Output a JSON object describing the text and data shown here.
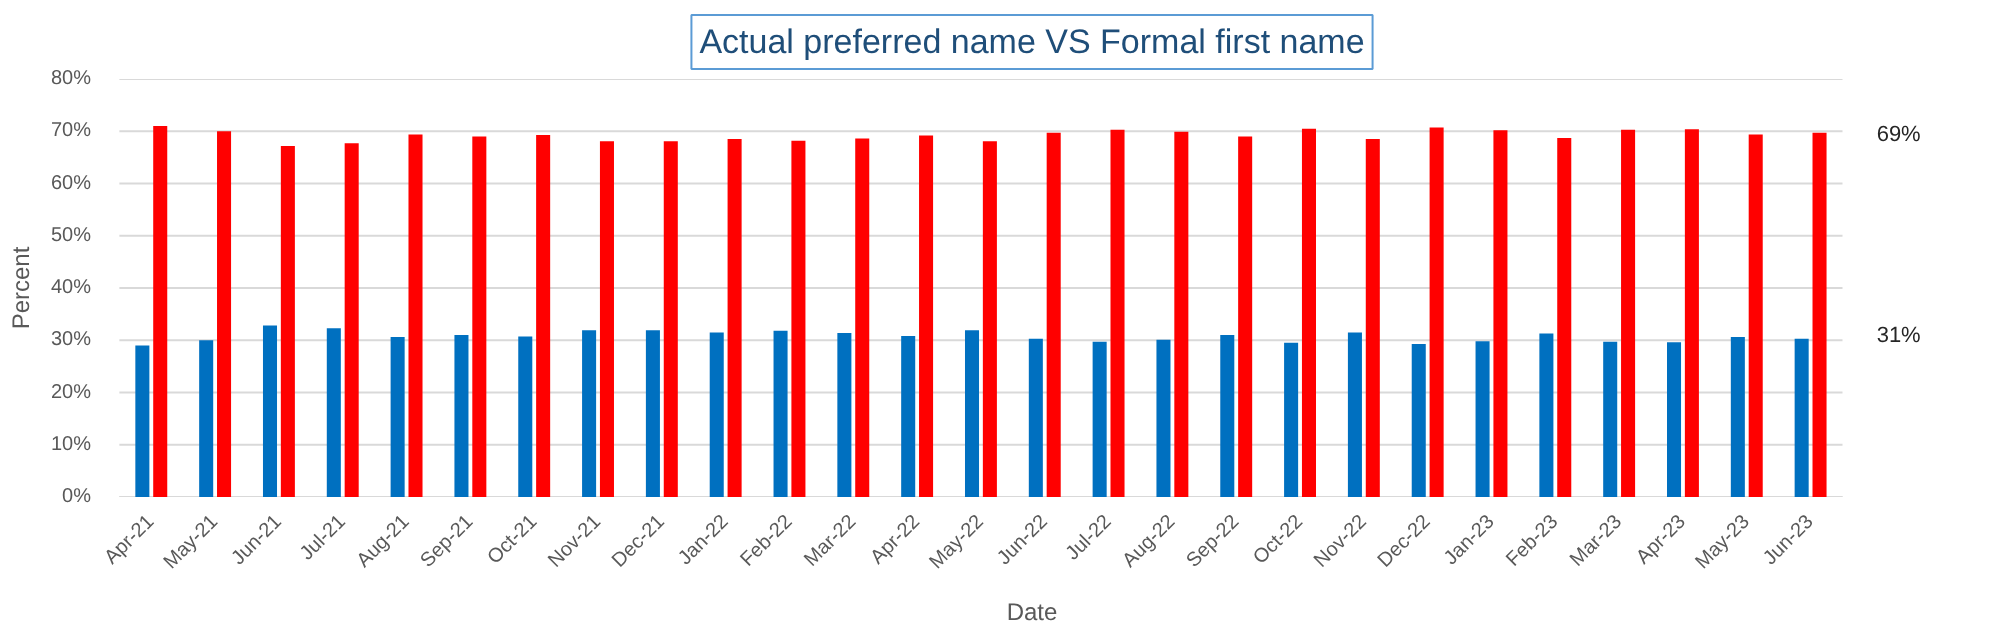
{
  "chart_data": {
    "type": "bar",
    "title": "Actual preferred name VS Formal first name",
    "xlabel": "Date",
    "ylabel": "Percent",
    "categories": [
      "Apr-21",
      "May-21",
      "Jun-21",
      "Jul-21",
      "Aug-21",
      "Sep-21",
      "Oct-21",
      "Nov-21",
      "Dec-21",
      "Jan-22",
      "Feb-22",
      "Mar-22",
      "Apr-22",
      "May-22",
      "Jun-22",
      "Jul-22",
      "Aug-22",
      "Sep-22",
      "Oct-22",
      "Nov-22",
      "Dec-22",
      "Jan-23",
      "Feb-23",
      "Mar-23",
      "Apr-23",
      "May-23",
      "Jun-23"
    ],
    "series": [
      {
        "color": "#0070c0",
        "values": [
          29,
          30,
          32.8,
          32.3,
          30.6,
          31,
          30.7,
          31.9,
          31.9,
          31.5,
          31.8,
          31.4,
          30.8,
          31.9,
          30.3,
          29.7,
          30.1,
          31,
          29.5,
          31.5,
          29.3,
          29.8,
          31.3,
          29.7,
          29.6,
          30.6,
          30.3
        ]
      },
      {
        "color": "#ff0000",
        "values": [
          71,
          70,
          67.2,
          67.7,
          69.4,
          69,
          69.3,
          68.1,
          68.1,
          68.5,
          68.2,
          68.6,
          69.2,
          68.1,
          69.7,
          70.3,
          69.9,
          69,
          70.5,
          68.5,
          70.7,
          70.2,
          68.7,
          70.3,
          70.4,
          69.4,
          69.7
        ]
      }
    ],
    "ylim": [
      0,
      80
    ],
    "yticks": [
      {
        "value": 0,
        "label": "0%"
      },
      {
        "value": 10,
        "label": "10%"
      },
      {
        "value": 20,
        "label": "20%"
      },
      {
        "value": 30,
        "label": "30%"
      },
      {
        "value": 40,
        "label": "40%"
      },
      {
        "value": 50,
        "label": "50%"
      },
      {
        "value": 60,
        "label": "60%"
      },
      {
        "value": 70,
        "label": "70%"
      },
      {
        "value": 80,
        "label": "80%"
      }
    ],
    "grid": "y",
    "annotations": [
      "69%",
      "31%"
    ]
  }
}
